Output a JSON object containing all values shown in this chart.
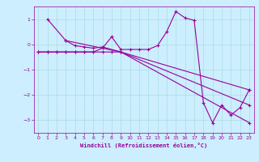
{
  "xlabel": "Windchill (Refroidissement éolien,°C)",
  "bg_color": "#cceeff",
  "line_color": "#990099",
  "grid_color": "#aadddd",
  "xlim": [
    -0.5,
    23.5
  ],
  "ylim": [
    -3.5,
    1.5
  ],
  "xticks": [
    0,
    1,
    2,
    3,
    4,
    5,
    6,
    7,
    8,
    9,
    10,
    11,
    12,
    13,
    14,
    15,
    16,
    17,
    18,
    19,
    20,
    21,
    22,
    23
  ],
  "yticks": [
    -3,
    -2,
    -1,
    0,
    1
  ],
  "line1": {
    "x": [
      0,
      1,
      2,
      3,
      4,
      5,
      6,
      7,
      8,
      9,
      23
    ],
    "y": [
      -0.3,
      -0.3,
      -0.3,
      -0.3,
      -0.3,
      -0.3,
      -0.3,
      -0.3,
      -0.3,
      -0.3,
      -1.8
    ]
  },
  "line2": {
    "x": [
      1,
      3,
      9,
      23
    ],
    "y": [
      1.0,
      0.15,
      -0.3,
      -2.4
    ]
  },
  "line3": {
    "x": [
      3,
      4,
      5,
      6,
      7,
      9,
      23
    ],
    "y": [
      0.15,
      -0.05,
      -0.1,
      -0.15,
      -0.1,
      -0.3,
      -3.1
    ]
  },
  "line4": {
    "x": [
      0,
      1,
      2,
      3,
      4,
      5,
      6,
      7,
      8,
      9,
      10,
      11,
      12,
      13,
      14,
      15,
      16,
      17,
      18,
      19,
      20,
      21,
      22,
      23
    ],
    "y": [
      -0.3,
      -0.3,
      -0.3,
      -0.3,
      -0.3,
      -0.3,
      -0.3,
      -0.15,
      0.3,
      -0.2,
      -0.2,
      -0.2,
      -0.2,
      -0.05,
      0.5,
      1.3,
      1.05,
      0.95,
      -2.3,
      -3.1,
      -2.4,
      -2.8,
      -2.5,
      -1.8
    ]
  }
}
